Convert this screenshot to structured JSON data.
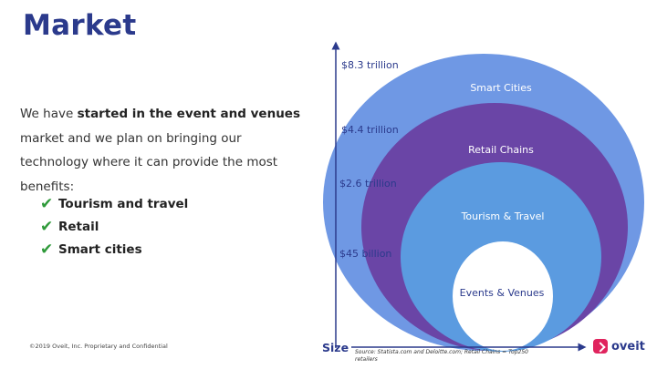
{
  "page": {
    "title": "Market"
  },
  "intro": {
    "lead": "We have ",
    "bold": "started in the event and venues",
    "rest": " market and we plan on bringing our technology where it can provide the most benefits:"
  },
  "bullets": [
    "Tourism and travel",
    "Retail",
    "Smart cities"
  ],
  "diagram": {
    "axis_label": "Size",
    "circles": [
      {
        "label": "Smart Cities",
        "value": "$8.3 trillion",
        "color": "#6f98e4"
      },
      {
        "label": "Retail Chains",
        "value": "$4.4 trillion",
        "color": "#6a45a6"
      },
      {
        "label": "Tourism & Travel",
        "value": "$2.6 trillion",
        "color": "#5b9be0"
      },
      {
        "label": "Events & Venues",
        "value": "$45 billion",
        "color": "#ffffff"
      }
    ]
  },
  "footer": {
    "copyright": "©2019 Oveit, Inc. Proprietary and Confidential",
    "source": "Source: Statista.com and Deloitte.com; Retail Chains = Top250 retailers",
    "logo_text": "oveit",
    "brand_color": "#e0245e",
    "title_color": "#2b3a8c"
  }
}
